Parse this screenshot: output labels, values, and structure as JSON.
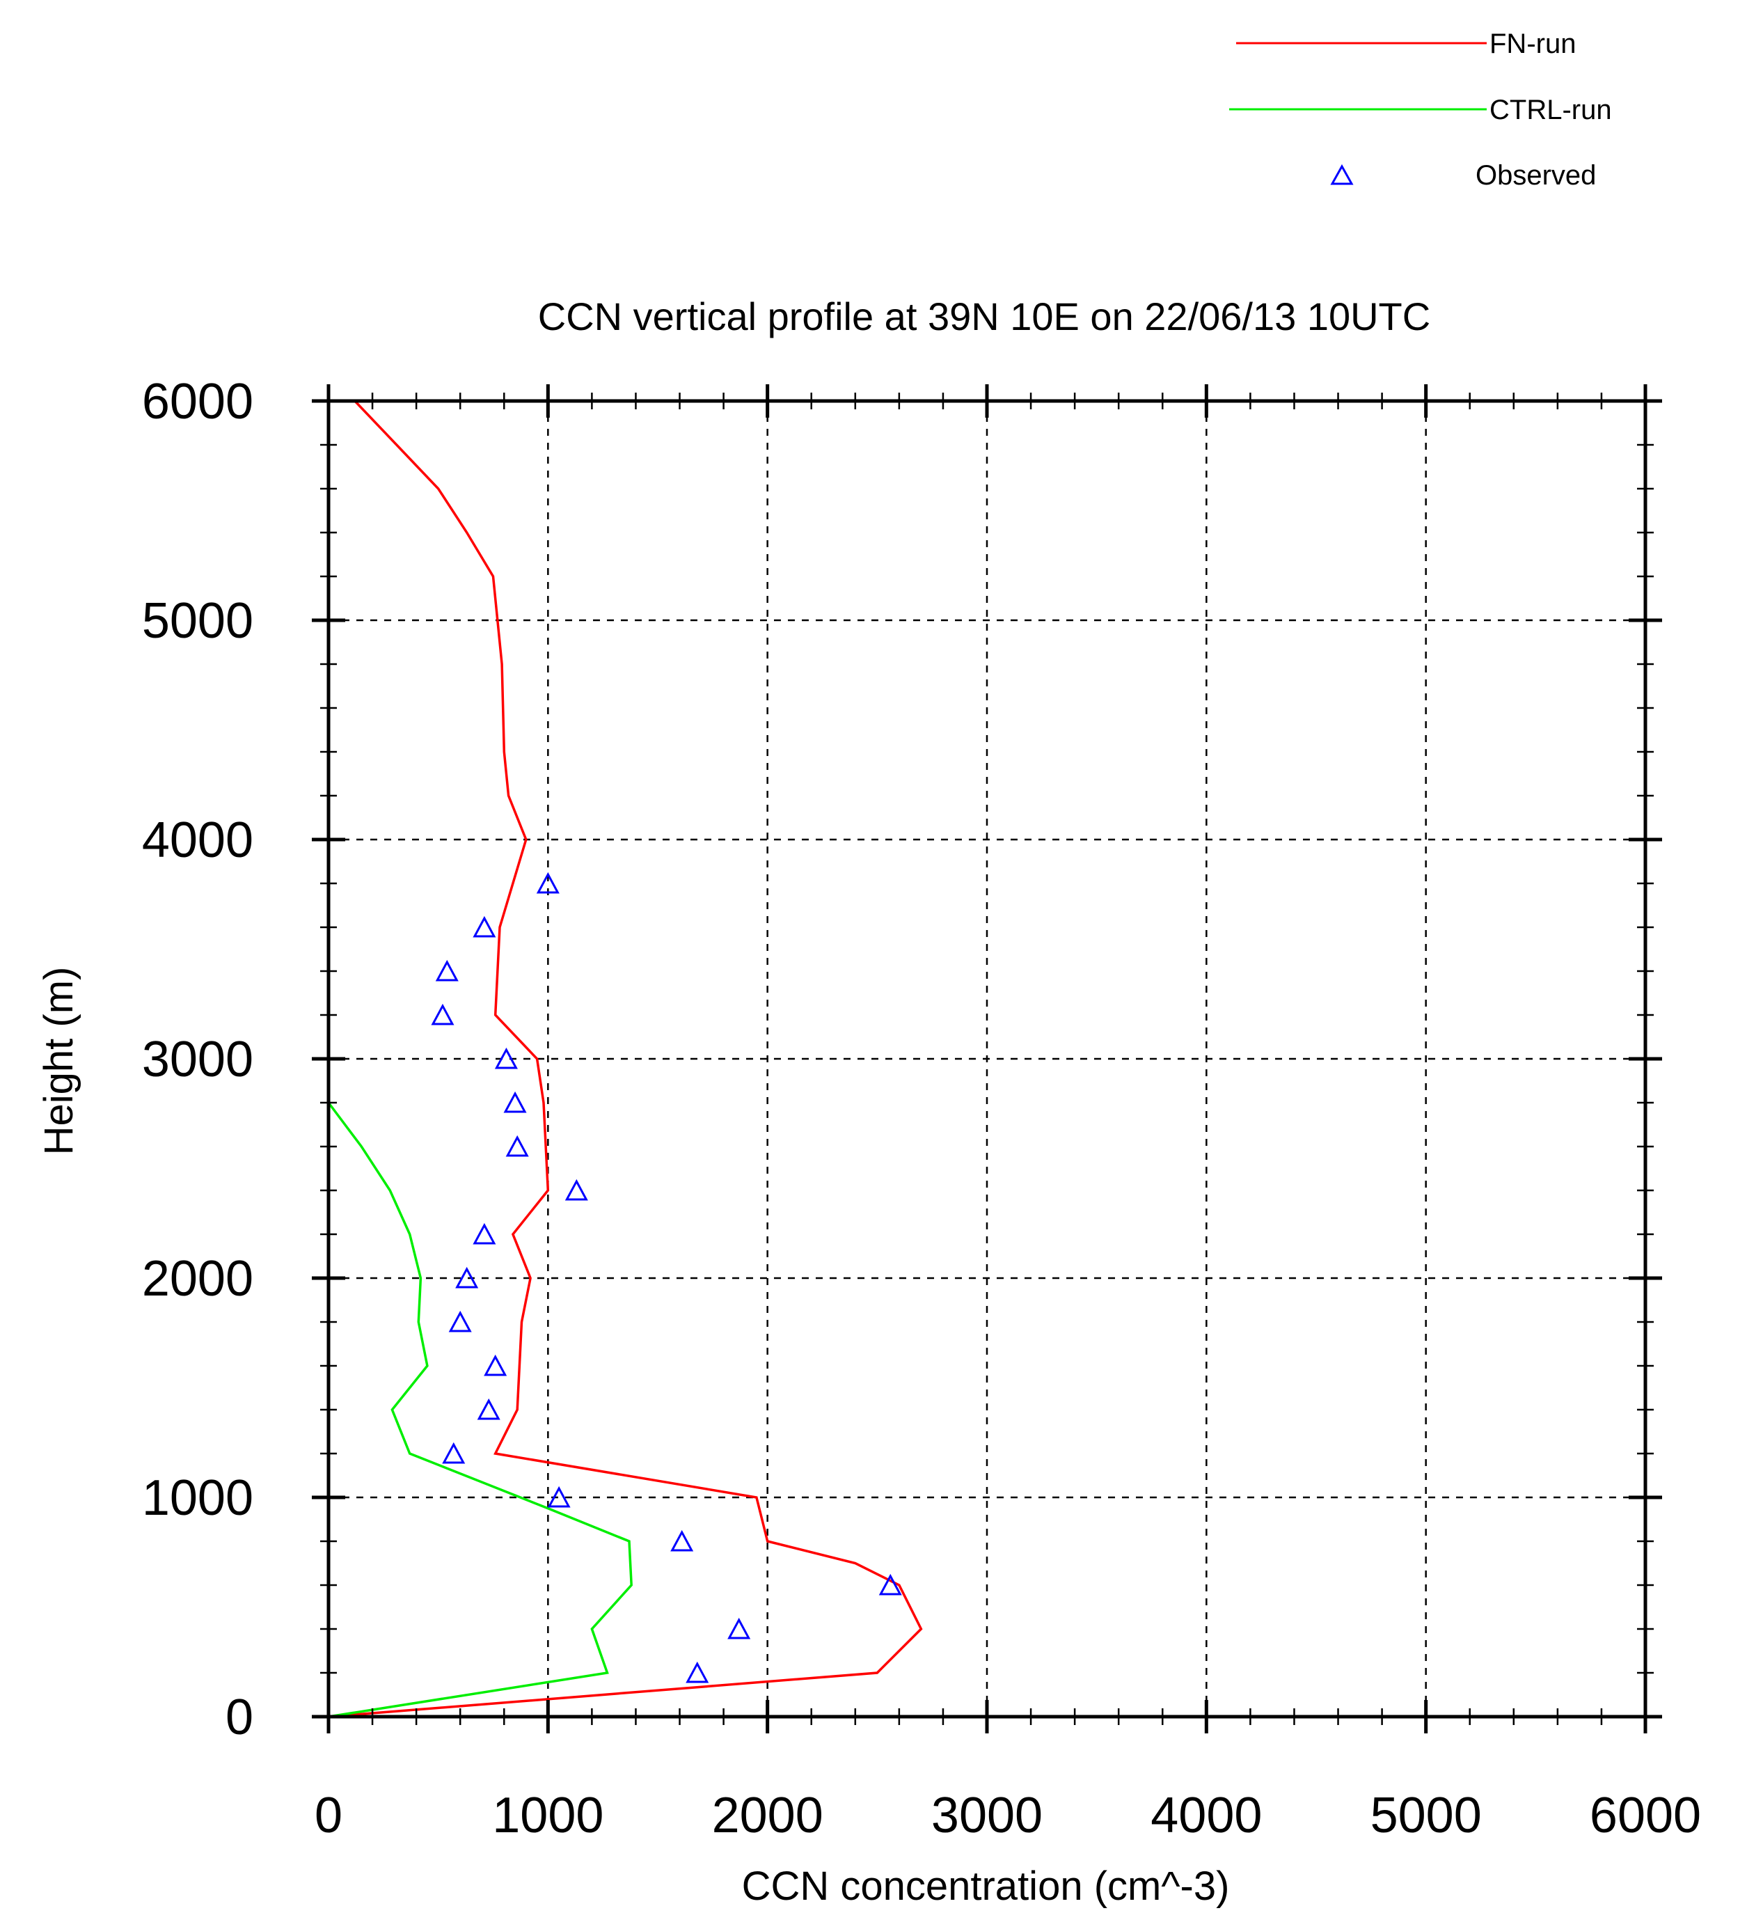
{
  "chart_data": {
    "type": "line",
    "title": "CCN vertical profile at 39N 10E on 22/06/13 10UTC",
    "xlabel": "CCN concentration (cm^-3)",
    "ylabel": "Height (m)",
    "xlim": [
      0,
      6000
    ],
    "ylim": [
      0,
      6000
    ],
    "xticks": [
      0,
      1000,
      2000,
      3000,
      4000,
      5000,
      6000
    ],
    "yticks": [
      0,
      1000,
      2000,
      3000,
      4000,
      5000,
      6000
    ],
    "xtick_labels": [
      "0",
      "1000",
      "2000",
      "3000",
      "4000",
      "5000",
      "6000"
    ],
    "ytick_labels": [
      "0",
      "1000",
      "2000",
      "3000",
      "4000",
      "5000",
      "6000"
    ],
    "grid": true,
    "grid_style": "dashed",
    "legend_position": "top-right",
    "series": [
      {
        "name": "FN-run",
        "kind": "line",
        "color": "#ff0000",
        "x": [
          0,
          2500,
          2700,
          2600,
          2400,
          2000,
          1950,
          760,
          860,
          880,
          920,
          840,
          1000,
          980,
          950,
          760,
          780,
          900,
          820,
          800,
          790,
          750,
          630,
          500,
          310,
          120
        ],
        "y": [
          0,
          200,
          400,
          600,
          700,
          800,
          1000,
          1200,
          1400,
          1800,
          2000,
          2200,
          2400,
          2800,
          3000,
          3200,
          3600,
          4000,
          4200,
          4400,
          4800,
          5200,
          5400,
          5600,
          5800,
          6000
        ]
      },
      {
        "name": "CTRL-run",
        "kind": "line",
        "color": "#00ee00",
        "x": [
          0,
          1270,
          1200,
          1380,
          1370,
          1000,
          370,
          290,
          450,
          410,
          420,
          370,
          280,
          150,
          0
        ],
        "y": [
          0,
          200,
          400,
          600,
          800,
          950,
          1200,
          1400,
          1600,
          1800,
          2000,
          2200,
          2400,
          2600,
          2800
        ]
      },
      {
        "name": "Observed",
        "kind": "markers",
        "marker": "triangle",
        "color": "#0000ff",
        "x": [
          1680,
          1870,
          2560,
          1610,
          1050,
          570,
          730,
          760,
          600,
          630,
          710,
          1130,
          860,
          850,
          810,
          520,
          540,
          710,
          1000
        ],
        "y": [
          200,
          400,
          600,
          800,
          1000,
          1200,
          1400,
          1600,
          1800,
          2000,
          2200,
          2400,
          2600,
          2800,
          3000,
          3200,
          3400,
          3600,
          3800
        ]
      }
    ]
  }
}
